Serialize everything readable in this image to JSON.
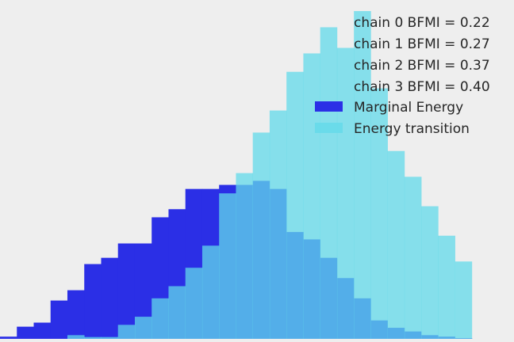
{
  "chart_data": {
    "type": "bar",
    "subtype": "histogram-overlay",
    "background": "#eeeeee",
    "grid": false,
    "legend_position": "top-right",
    "legend": {
      "annotations": [
        "chain  0 BFMI = 0.22",
        "chain  1 BFMI = 0.27",
        "chain  2 BFMI = 0.37",
        "chain  3 BFMI = 0.40"
      ]
    },
    "xlim": [
      -4.25,
      4.9
    ],
    "ylim": [
      0,
      0.92
    ],
    "bin_width": 0.3,
    "series": [
      {
        "name": "Marginal Energy",
        "color": "#2b2fe6",
        "alpha": 1.0,
        "bins": [
          {
            "x": -4.1,
            "y": 0.006
          },
          {
            "x": -3.8,
            "y": 0.033
          },
          {
            "x": -3.5,
            "y": 0.044
          },
          {
            "x": -3.2,
            "y": 0.104
          },
          {
            "x": -2.9,
            "y": 0.132
          },
          {
            "x": -2.6,
            "y": 0.203
          },
          {
            "x": -2.3,
            "y": 0.22
          },
          {
            "x": -2.0,
            "y": 0.259
          },
          {
            "x": -1.7,
            "y": 0.259
          },
          {
            "x": -1.4,
            "y": 0.33
          },
          {
            "x": -1.1,
            "y": 0.352
          },
          {
            "x": -0.8,
            "y": 0.407
          },
          {
            "x": -0.5,
            "y": 0.407
          },
          {
            "x": -0.2,
            "y": 0.418
          },
          {
            "x": 0.1,
            "y": 0.418
          },
          {
            "x": 0.4,
            "y": 0.429
          },
          {
            "x": 0.7,
            "y": 0.407
          },
          {
            "x": 1.0,
            "y": 0.29
          },
          {
            "x": 1.3,
            "y": 0.27
          },
          {
            "x": 1.6,
            "y": 0.22
          },
          {
            "x": 1.9,
            "y": 0.165
          },
          {
            "x": 2.2,
            "y": 0.11
          },
          {
            "x": 2.5,
            "y": 0.05
          },
          {
            "x": 2.8,
            "y": 0.03
          },
          {
            "x": 3.1,
            "y": 0.02
          },
          {
            "x": 3.4,
            "y": 0.01
          },
          {
            "x": 3.7,
            "y": 0.006
          },
          {
            "x": 4.0,
            "y": 0.002
          }
        ]
      },
      {
        "name": "Energy transition",
        "color": "#61d9ea",
        "alpha": 0.75,
        "bins": [
          {
            "x": -2.9,
            "y": 0.01
          },
          {
            "x": -2.6,
            "y": 0.005
          },
          {
            "x": -2.3,
            "y": 0.005
          },
          {
            "x": -2.0,
            "y": 0.038
          },
          {
            "x": -1.7,
            "y": 0.06
          },
          {
            "x": -1.4,
            "y": 0.11
          },
          {
            "x": -1.1,
            "y": 0.143
          },
          {
            "x": -0.8,
            "y": 0.193
          },
          {
            "x": -0.5,
            "y": 0.253
          },
          {
            "x": -0.2,
            "y": 0.395
          },
          {
            "x": 0.1,
            "y": 0.45
          },
          {
            "x": 0.4,
            "y": 0.56
          },
          {
            "x": 0.7,
            "y": 0.62
          },
          {
            "x": 1.0,
            "y": 0.725
          },
          {
            "x": 1.3,
            "y": 0.775
          },
          {
            "x": 1.6,
            "y": 0.846
          },
          {
            "x": 1.9,
            "y": 0.79
          },
          {
            "x": 2.2,
            "y": 0.89
          },
          {
            "x": 2.5,
            "y": 0.68
          },
          {
            "x": 2.8,
            "y": 0.51
          },
          {
            "x": 3.1,
            "y": 0.44
          },
          {
            "x": 3.4,
            "y": 0.36
          },
          {
            "x": 3.7,
            "y": 0.28
          },
          {
            "x": 4.0,
            "y": 0.21
          }
        ]
      }
    ]
  }
}
